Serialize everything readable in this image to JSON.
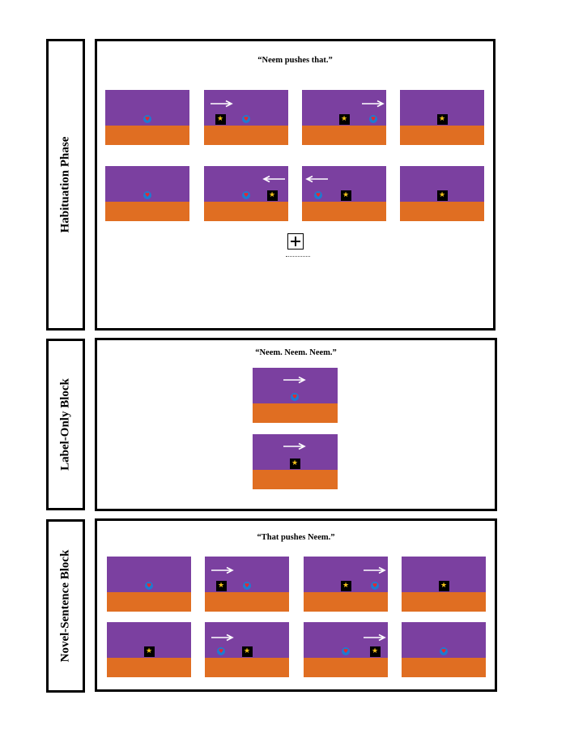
{
  "blocks": [
    {
      "id": "habituation",
      "label": "Habituation Phase",
      "caption": "“Neem pushes that.”"
    },
    {
      "id": "label-only",
      "label": "Label-Only Block",
      "caption": "“Neem. Neem. Neem.”"
    },
    {
      "id": "novel-sentence",
      "label": "Novel-Sentence Block",
      "caption": "“That pushes Neem.”"
    }
  ],
  "colors": {
    "sky": "#7b40a0",
    "ground": "#e06e22",
    "circle_agent": "#1e7ad0",
    "heart": "#e8262f",
    "star_box": "#000000",
    "star": "#f2c21b",
    "arrow": "#ffffff"
  },
  "icons": {
    "circle_agent": "heart-in-blue-circle",
    "star_agent": "yellow-star-in-black-square",
    "fixation": "boxed-plus-attention-getter"
  },
  "glyphs": {
    "heart": "♥",
    "star": "★"
  }
}
